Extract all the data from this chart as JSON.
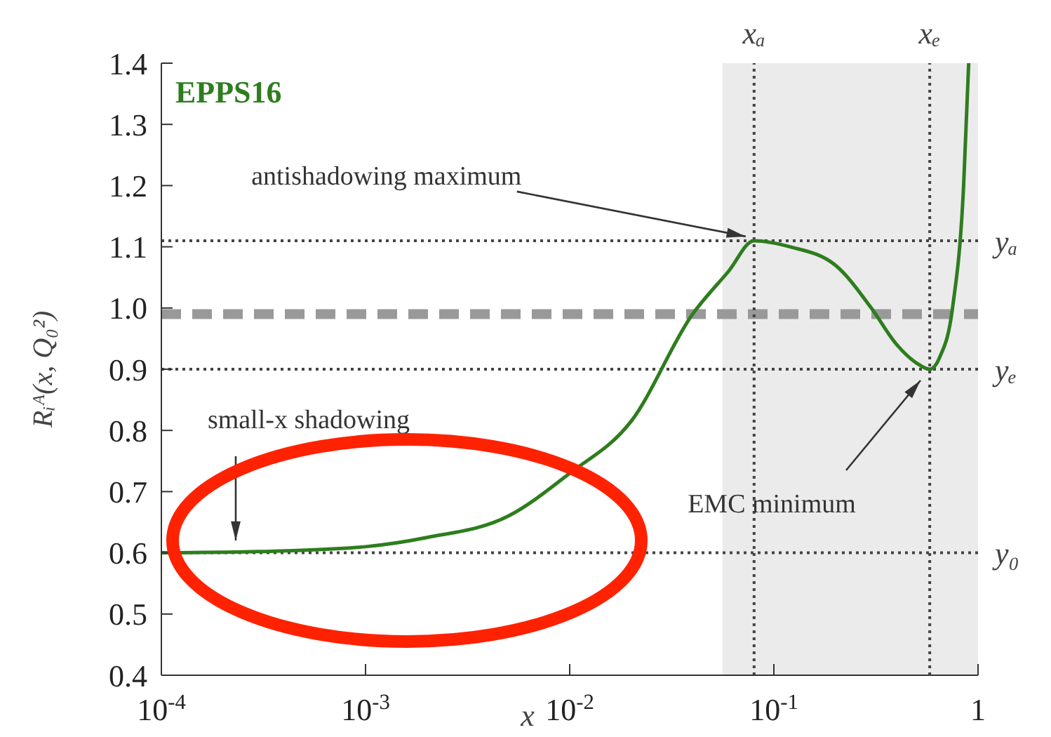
{
  "chart_data": {
    "type": "line",
    "xlabel": "x",
    "ylabel": "Rᵢᴬ(x, Q₀²)",
    "log": "x",
    "x": [
      0.0001,
      0.0003,
      0.001,
      0.002,
      0.005,
      0.01,
      0.02,
      0.04,
      0.06,
      0.08,
      0.12,
      0.2,
      0.3,
      0.4,
      0.5,
      0.58,
      0.65,
      0.75,
      0.85,
      0.9
    ],
    "series": [
      {
        "name": "EPPS16",
        "color": "#2e7d1e",
        "values": [
          0.6,
          0.602,
          0.61,
          0.625,
          0.66,
          0.73,
          0.815,
          0.99,
          1.06,
          1.11,
          1.1,
          1.07,
          1.0,
          0.94,
          0.91,
          0.9,
          0.92,
          1.0,
          1.2,
          1.4
        ]
      }
    ],
    "xlim": [
      0.0001,
      1
    ],
    "ylim": [
      0.4,
      1.4
    ],
    "xticks": [
      {
        "value": 0.0001,
        "label": "10$^{-4}$"
      },
      {
        "value": 0.001,
        "label": "10$^{-3}$"
      },
      {
        "value": 0.01,
        "label": "10$^{-2}$"
      },
      {
        "value": 0.1,
        "label": "10$^{-1}$"
      },
      1
    ],
    "yticks": [
      0.4,
      0.5,
      0.6,
      0.7,
      0.8,
      0.9,
      {
        "value": 1,
        "label": "1.0"
      },
      1.1,
      1.2,
      1.3,
      1.4
    ],
    "marker": "none",
    "line_style": "solid",
    "bands": [
      {
        "axis": "x",
        "from": 0.056,
        "to": 1,
        "color": "#ebebeb"
      }
    ],
    "ref_lines": [
      {
        "axis": "y",
        "value": 0.99,
        "color": "#999999",
        "line_style": "dashed"
      },
      {
        "axis": "y",
        "value": 1.11,
        "label": "yₐ",
        "color": "#444444",
        "line_style": "dotted"
      },
      {
        "axis": "y",
        "value": 0.9,
        "label": "yₑ",
        "color": "#444444",
        "line_style": "dotted"
      },
      {
        "axis": "y",
        "value": 0.6,
        "label": "y₀",
        "color": "#444444",
        "line_style": "dotted"
      },
      {
        "axis": "x",
        "value": 0.08,
        "label": "xₐ",
        "color": "#444444",
        "line_style": "dotted"
      },
      {
        "axis": "x",
        "value": 0.58,
        "label": "xₑ",
        "color": "#444444",
        "line_style": "dotted"
      }
    ],
    "annotations": [
      {
        "text": "antishadowing maximum",
        "x": 0.08,
        "y": 1.11
      },
      "small-x shadowing",
      "EMC minimum"
    ]
  }
}
